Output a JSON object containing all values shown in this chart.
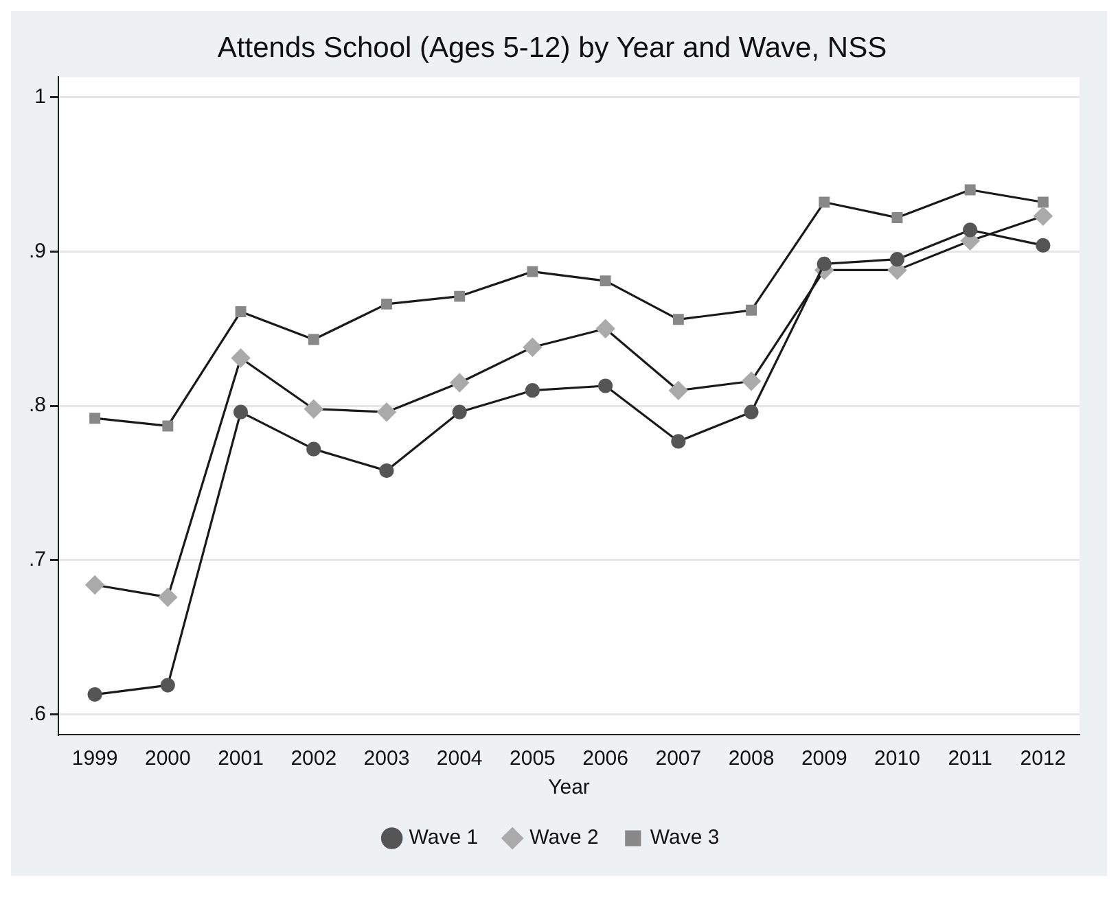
{
  "chart_data": {
    "type": "line",
    "title": "Attends School (Ages 5-12) by Year and Wave, NSS",
    "xlabel": "Year",
    "categories": [
      "1999",
      "2000",
      "2001",
      "2002",
      "2003",
      "2004",
      "2005",
      "2006",
      "2007",
      "2008",
      "2009",
      "2010",
      "2011",
      "2012"
    ],
    "ylim": [
      0.587,
      1.013
    ],
    "yticks": [
      {
        "value": 0.6,
        "label": ".6"
      },
      {
        "value": 0.7,
        "label": ".7"
      },
      {
        "value": 0.8,
        "label": ".8"
      },
      {
        "value": 0.9,
        "label": ".9"
      },
      {
        "value": 1,
        "label": "1"
      }
    ],
    "grid": "y",
    "legend": "bottom",
    "series": [
      {
        "name": "Wave 1",
        "color": "#555555",
        "marker": "circle",
        "values": [
          0.613,
          0.619,
          0.796,
          0.772,
          0.758,
          0.796,
          0.81,
          0.813,
          0.777,
          0.796,
          0.892,
          0.895,
          0.914,
          0.904
        ]
      },
      {
        "name": "Wave 2",
        "color": "#aaaaaa",
        "marker": "diamond",
        "values": [
          0.684,
          0.676,
          0.831,
          0.798,
          0.796,
          0.815,
          0.838,
          0.85,
          0.81,
          0.816,
          0.888,
          0.888,
          0.907,
          0.923
        ]
      },
      {
        "name": "Wave 3",
        "color": "#888888",
        "marker": "square",
        "values": [
          0.792,
          0.787,
          0.861,
          0.843,
          0.866,
          0.871,
          0.887,
          0.881,
          0.856,
          0.862,
          0.932,
          0.922,
          0.94,
          0.932
        ]
      }
    ]
  }
}
